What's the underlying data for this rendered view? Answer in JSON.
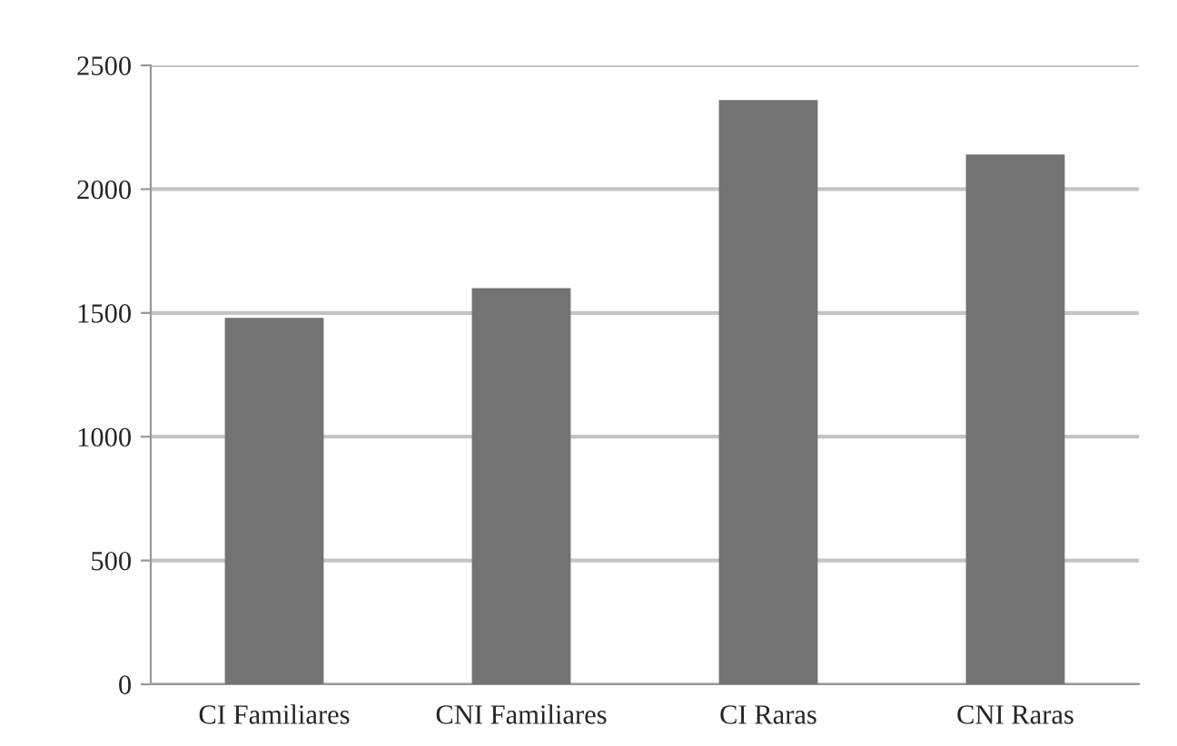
{
  "chart_data": {
    "type": "bar",
    "categories": [
      "CI Familiares",
      "CNI Familiares",
      "CI Raras",
      "CNI Raras"
    ],
    "values": [
      1480,
      1600,
      2360,
      2140
    ],
    "color": "#737373",
    "ylim": [
      0,
      2500
    ],
    "yticks": [
      0,
      500,
      1000,
      1500,
      2000,
      2500
    ],
    "grid": "y",
    "legend": false
  }
}
